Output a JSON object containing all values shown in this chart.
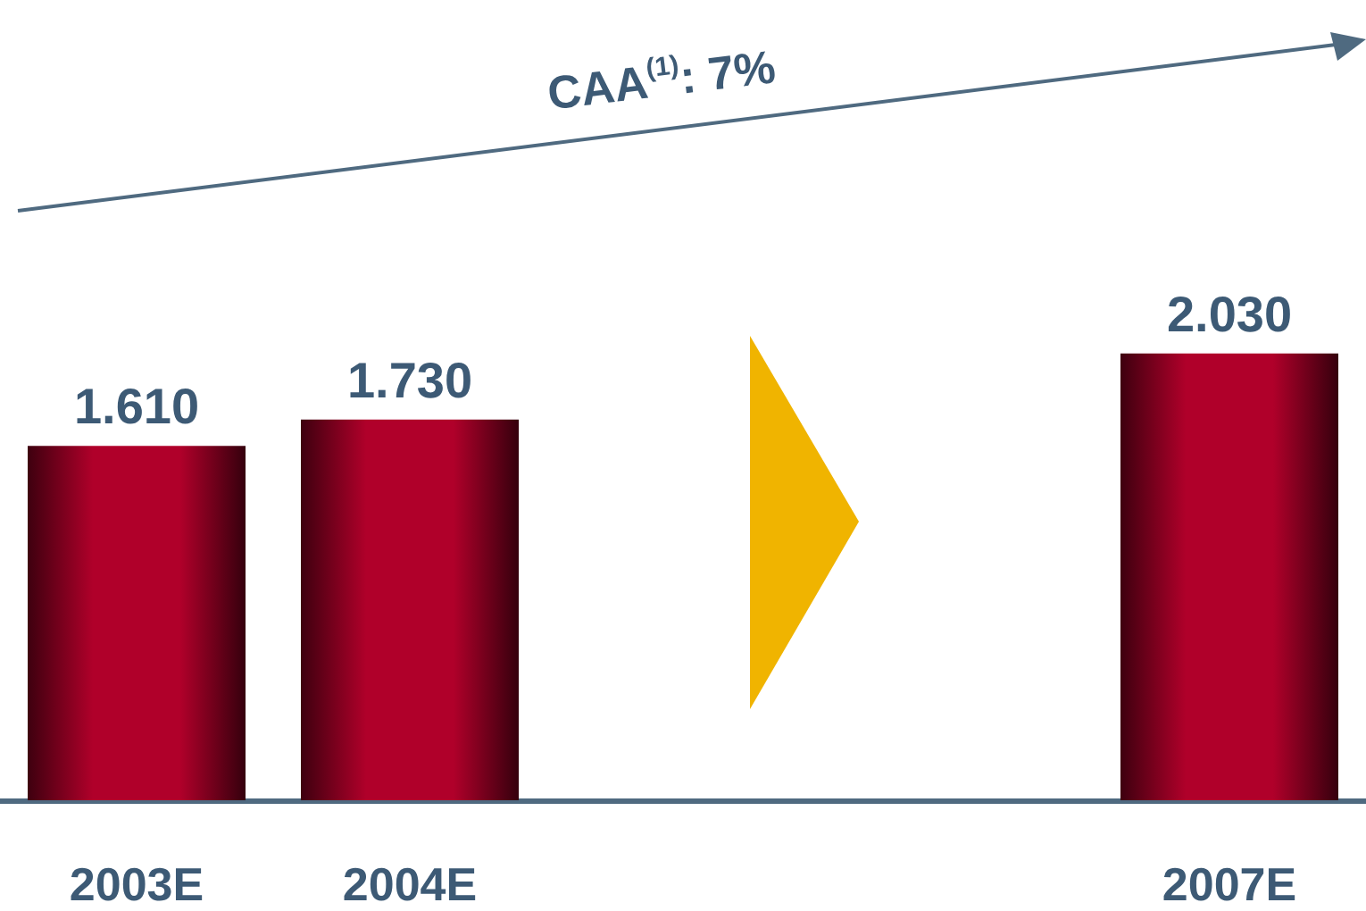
{
  "chart_data": {
    "type": "bar",
    "categories": [
      "2003E",
      "2004E",
      null,
      null,
      "2007E"
    ],
    "values": [
      1610,
      1730,
      null,
      null,
      2030
    ],
    "value_labels": [
      "1.610",
      "1.730",
      null,
      null,
      "2.030"
    ],
    "color": "#b0002a",
    "annotations": [
      "CAA$^{(1)}$: 7%"
    ]
  }
}
